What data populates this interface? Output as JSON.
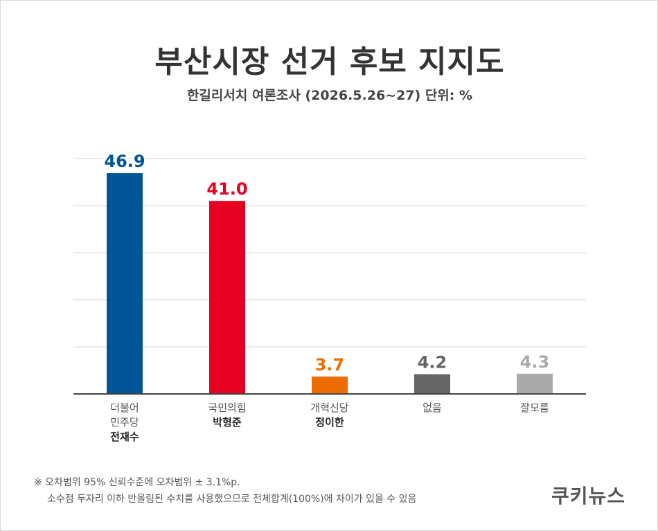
{
  "title": "부산시장 선거 후보 지지도",
  "subtitle": "한길리서치 여론조사 (2026.5.26~27) 단위: %",
  "chart_data": {
    "type": "bar",
    "categories": [
      {
        "line1": "더불어",
        "line2": "민주당",
        "candidate": "전재수"
      },
      {
        "line1": "국민의힘",
        "line2": "",
        "candidate": "박형준"
      },
      {
        "line1": "개혁신당",
        "line2": "",
        "candidate": "정이한"
      },
      {
        "line1": "없음",
        "line2": "",
        "candidate": ""
      },
      {
        "line1": "잘모름",
        "line2": "",
        "candidate": ""
      }
    ],
    "values": [
      46.9,
      41.0,
      3.7,
      4.2,
      4.3
    ],
    "value_labels": [
      "46.9",
      "41.0",
      "3.7",
      "4.2",
      "4.3"
    ],
    "colors": [
      "#005596",
      "#e60021",
      "#ec6c00",
      "#666666",
      "#aaaaaa"
    ],
    "ylim": [
      0,
      50
    ],
    "grid": true
  },
  "footnote": {
    "line1": "※ 오차범위 95% 신뢰수준에 오차범위 ± 3.1%p.",
    "line2": "소수점 두자리 이하 반올림된 수치를 사용했으므로 전체합계(100%)에 차이가 있을 수 있음"
  },
  "brand": "쿠키뉴스"
}
